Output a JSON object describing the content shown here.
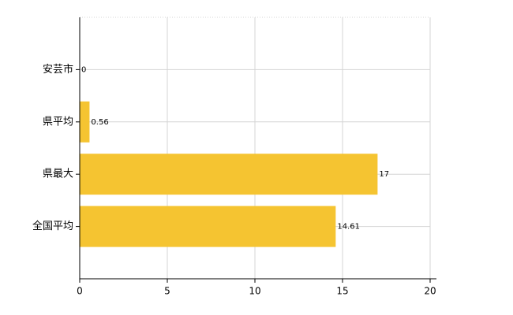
{
  "chart_data": {
    "type": "barh",
    "categories": [
      "安芸市",
      "県平均",
      "県最大",
      "全国平均"
    ],
    "values": [
      0,
      0.56,
      17,
      14.61
    ],
    "color": "#f5c431",
    "xlim": [
      0,
      20
    ],
    "xticks": [
      0,
      5,
      10,
      15,
      20
    ],
    "grid": true
  }
}
